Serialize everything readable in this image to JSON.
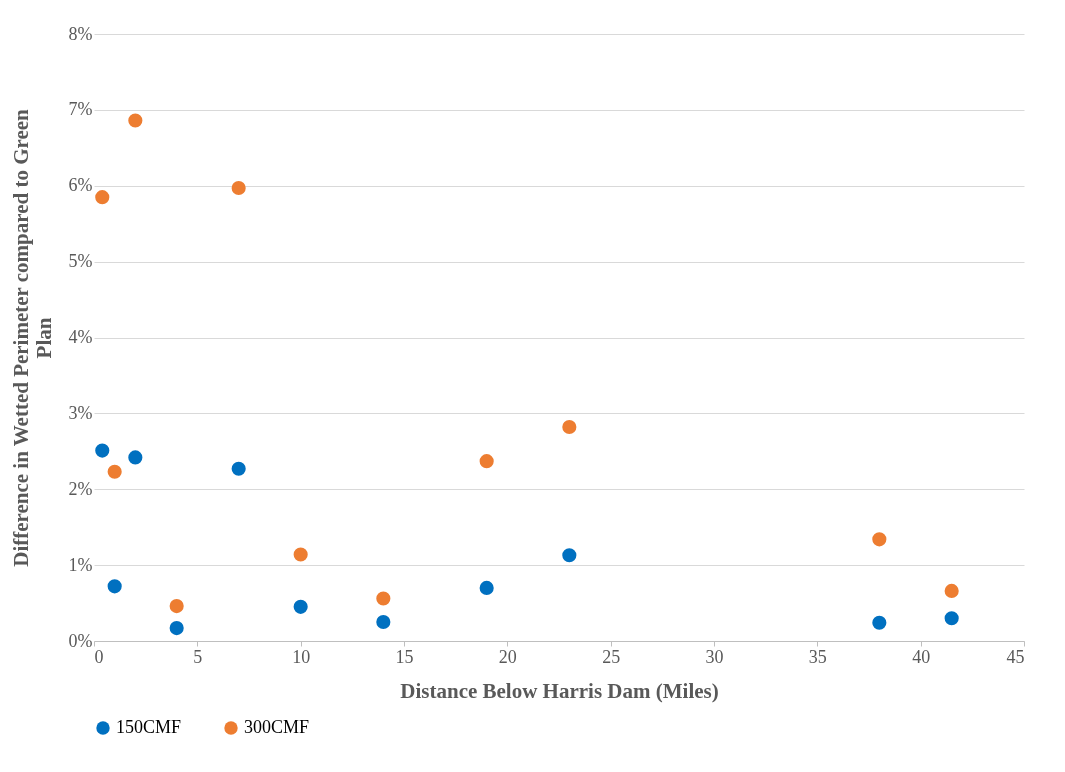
{
  "chart_data": {
    "type": "scatter",
    "xlabel": "Distance Below Harris Dam (Miles)",
    "ylabel": "Difference in Wetted Perimeter compared to Green Plan",
    "x": [
      0.4,
      1,
      2,
      4,
      7,
      10,
      14,
      19,
      23,
      38,
      41.5
    ],
    "series": [
      {
        "name": "150CMF",
        "color": "#0070c0",
        "values": [
          2.51,
          0.72,
          2.42,
          0.17,
          2.27,
          0.45,
          0.25,
          0.7,
          1.13,
          0.24,
          0.3
        ]
      },
      {
        "name": "300CMF",
        "color": "#ed7d31",
        "values": [
          5.85,
          2.23,
          6.86,
          0.46,
          5.97,
          1.14,
          0.56,
          2.37,
          2.82,
          1.34,
          0.66
        ]
      }
    ],
    "xlim": [
      0,
      45
    ],
    "xticks": [
      0,
      5,
      10,
      15,
      20,
      25,
      30,
      35,
      40,
      45
    ],
    "ylim": [
      0,
      8
    ],
    "yticks": [
      {
        "value": 0,
        "label": "0%"
      },
      {
        "value": 1,
        "label": "1%"
      },
      {
        "value": 2,
        "label": "2%"
      },
      {
        "value": 3,
        "label": "3%"
      },
      {
        "value": 4,
        "label": "4%"
      },
      {
        "value": 5,
        "label": "5%"
      },
      {
        "value": 6,
        "label": "6%"
      },
      {
        "value": 7,
        "label": "7%"
      },
      {
        "value": 8,
        "label": "8%"
      }
    ],
    "grid": "y",
    "legend": "bottom",
    "marker": "circle"
  }
}
